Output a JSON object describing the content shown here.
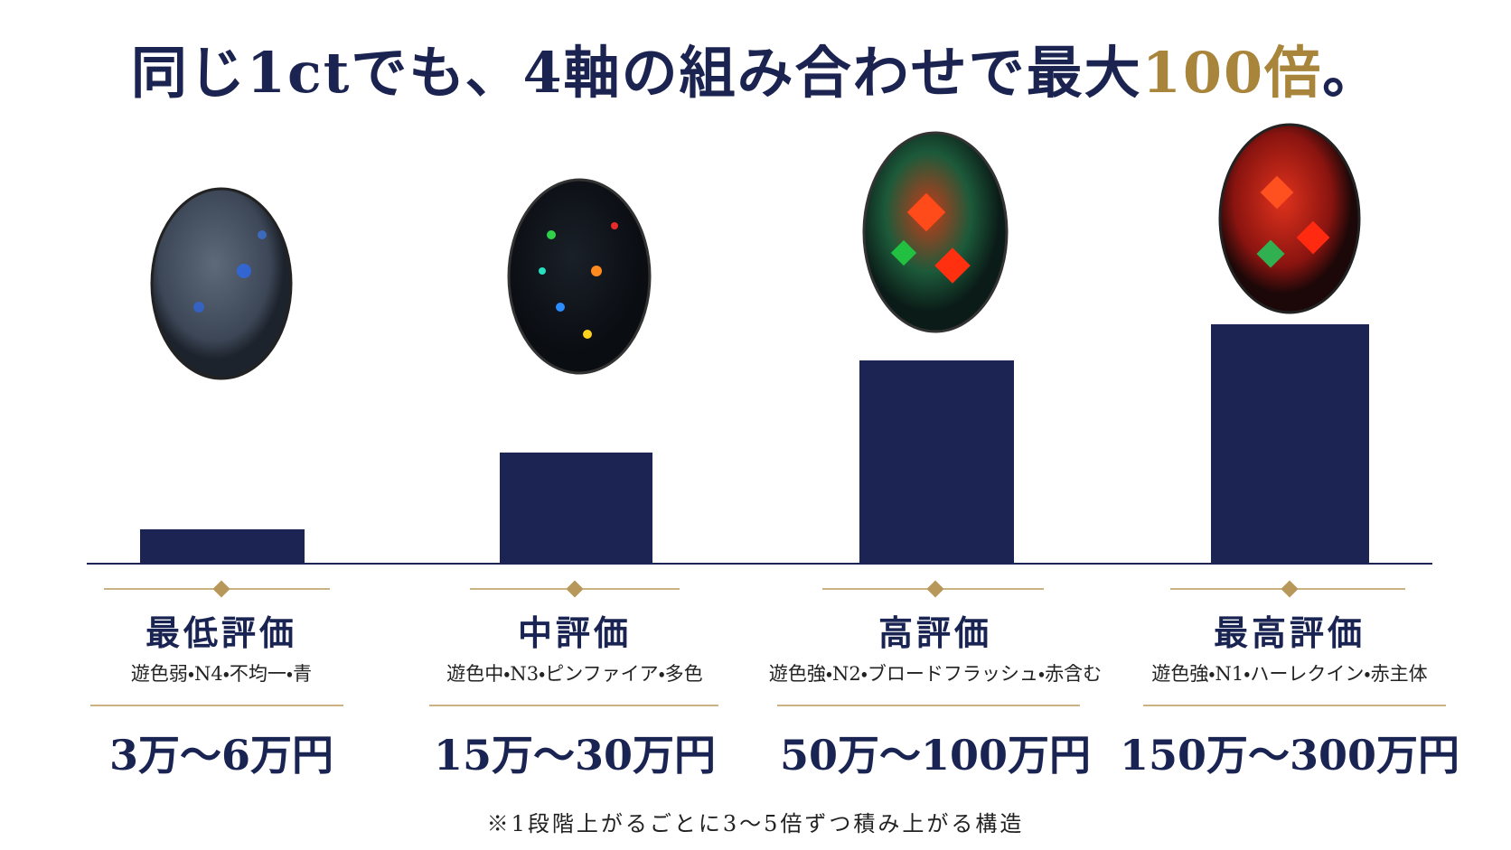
{
  "title": {
    "main": "同じ1ctでも、4軸の組み合わせで最大",
    "highlight": "100倍",
    "end": "。"
  },
  "tiers": [
    {
      "name": "最低評価",
      "spec": "遊色弱・N4・不均一・青",
      "price": "3万〜6万円"
    },
    {
      "name": "中評価",
      "spec": "遊色中・N3・ピンファイア・多色",
      "price": "15万〜30万円"
    },
    {
      "name": "高評価",
      "spec": "遊色強・N2・ブロードフラッシュ・赤含む",
      "price": "50万〜100万円"
    },
    {
      "name": "最高評価",
      "spec": "遊色強・N1・ハーレクイン・赤主体",
      "price": "150万〜300万円"
    }
  ],
  "footnote": "※1段階上がるごとに3〜5倍ずつ積み上がる構造"
}
